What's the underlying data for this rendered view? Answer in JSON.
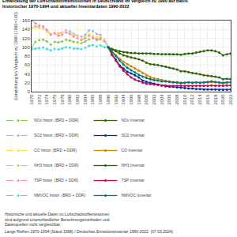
{
  "chart_data": {
    "type": "line",
    "title": "Entwicklung der Luftschadstoffemissionen in Deutschland im Vergleich zu 1990 auf Basis",
    "subtitle": "historischer 1970-1994 und aktueller Inventardaten 1990-2022",
    "y_label": "Entwicklung im Vergleich zu 1990 (1990=100)",
    "annotations": [
      "Historische und aktuelle Daten zu Luftschadstoffemissionen\nsind aufgrund unterschiedlicher Berechnungsmethoden und\nDatenquellen nicht vergleichbar.",
      "Lange Reihen 1970-1994 (Stand 1998) / Deutsches Emissionsinventar 1990-2022  (07.03.2024)"
    ],
    "x": [
      1970,
      1971,
      1972,
      1973,
      1974,
      1975,
      1976,
      1977,
      1978,
      1979,
      1980,
      1981,
      1982,
      1983,
      1984,
      1985,
      1986,
      1987,
      1988,
      1989,
      1990,
      1991,
      1992,
      1993,
      1994,
      1995,
      1996,
      1997,
      1998,
      1999,
      2000,
      2001,
      2002,
      2003,
      2004,
      2005,
      2006,
      2007,
      2008,
      2009,
      2010,
      2011,
      2012,
      2013,
      2014,
      2015,
      2016,
      2017,
      2018,
      2019,
      2020,
      2021,
      2022
    ],
    "xlim": [
      1970,
      2022
    ],
    "xticks": [
      1970,
      1972,
      1974,
      1976,
      1978,
      1980,
      1982,
      1984,
      1986,
      1988,
      1990,
      1992,
      1994,
      1996,
      1998,
      2000,
      2002,
      2004,
      2006,
      2008,
      2010,
      2012,
      2014,
      2016,
      2018,
      2020,
      2022
    ],
    "ylim": [
      0,
      160
    ],
    "yticks": [
      0,
      20,
      40,
      60,
      80,
      100,
      120,
      140,
      160
    ],
    "grid": true,
    "legend": "bottom",
    "marker": "point",
    "series": [
      {
        "name": "NOx histor. (BRD + DDR)",
        "color": "#88cc44",
        "line_style": "dashed",
        "values": [
          99,
          112,
          116,
          117,
          113,
          106,
          112,
          111,
          113,
          117,
          115,
          112,
          111,
          109,
          113,
          118,
          120,
          116,
          118,
          114,
          100,
          null,
          null,
          null,
          null,
          null,
          null,
          null,
          null,
          null,
          null,
          null,
          null,
          null,
          null,
          null,
          null,
          null,
          null,
          null,
          null,
          null,
          null,
          null,
          null,
          null,
          null,
          null,
          null,
          null,
          null,
          null,
          null
        ]
      },
      {
        "name": "NOx Inventar",
        "color": "#336600",
        "line_style": "solid",
        "values": [
          null,
          null,
          null,
          null,
          null,
          null,
          null,
          null,
          null,
          null,
          null,
          null,
          null,
          null,
          null,
          null,
          null,
          null,
          null,
          null,
          100,
          95,
          91,
          86,
          82,
          79,
          77,
          75,
          73,
          70,
          65,
          62,
          61,
          60,
          58,
          56,
          54,
          52,
          50,
          46,
          46,
          44,
          42,
          41,
          39,
          37,
          36,
          35,
          34,
          32,
          28,
          29,
          28
        ]
      },
      {
        "name": "SO2 histor. (BRD + DDR)",
        "color": "#88bbff",
        "line_style": "dashed",
        "values": [
          143,
          147,
          145,
          143,
          136,
          130,
          133,
          131,
          133,
          138,
          136,
          130,
          126,
          124,
          128,
          138,
          136,
          130,
          128,
          118,
          100,
          null,
          null,
          null,
          null,
          null,
          null,
          null,
          null,
          null,
          null,
          null,
          null,
          null,
          null,
          null,
          null,
          null,
          null,
          null,
          null,
          null,
          null,
          null,
          null,
          null,
          null,
          null,
          null,
          null,
          null,
          null,
          null
        ]
      },
      {
        "name": "SO2 Inventar",
        "color": "#003399",
        "line_style": "solid",
        "values": [
          null,
          null,
          null,
          null,
          null,
          null,
          null,
          null,
          null,
          null,
          null,
          null,
          null,
          null,
          null,
          null,
          null,
          null,
          null,
          null,
          100,
          83,
          72,
          59,
          52,
          45,
          41,
          37,
          32,
          25,
          22,
          20,
          18,
          16,
          14,
          12,
          11,
          11,
          10,
          9,
          8,
          7,
          7,
          6,
          6,
          5,
          5,
          5,
          5,
          4,
          4,
          4,
          5
        ]
      },
      {
        "name": "CO histor. (BRD + DDR)",
        "color": "#ffdd44",
        "line_style": "dashed",
        "values": [
          143,
          145,
          143,
          142,
          135,
          128,
          133,
          130,
          132,
          136,
          132,
          128,
          124,
          120,
          124,
          130,
          126,
          122,
          124,
          118,
          100,
          null,
          null,
          null,
          null,
          null,
          null,
          null,
          null,
          null,
          null,
          null,
          null,
          null,
          null,
          null,
          null,
          null,
          null,
          null,
          null,
          null,
          null,
          null,
          null,
          null,
          null,
          null,
          null,
          null,
          null,
          null,
          null
        ]
      },
      {
        "name": "CO Inventar",
        "color": "#cc8800",
        "line_style": "solid",
        "values": [
          null,
          null,
          null,
          null,
          null,
          null,
          null,
          null,
          null,
          null,
          null,
          null,
          null,
          null,
          null,
          null,
          null,
          null,
          null,
          null,
          100,
          90,
          82,
          74,
          67,
          62,
          57,
          52,
          47,
          42,
          37,
          33,
          30,
          28,
          26,
          24,
          23,
          22,
          21,
          20,
          20,
          21,
          20,
          21,
          20,
          21,
          21,
          22,
          21,
          20,
          19,
          20,
          21
        ]
      },
      {
        "name": "NH3 histor. (BRD + DDR)",
        "color": "#aad966",
        "line_style": "dashed",
        "values": [
          null,
          null,
          null,
          null,
          null,
          null,
          null,
          null,
          null,
          null,
          null,
          null,
          null,
          null,
          null,
          null,
          null,
          null,
          null,
          null,
          100,
          null,
          null,
          null,
          null,
          null,
          null,
          null,
          null,
          null,
          null,
          null,
          null,
          null,
          null,
          null,
          null,
          null,
          null,
          null,
          null,
          null,
          null,
          null,
          null,
          null,
          null,
          null,
          null,
          null,
          null,
          null,
          null
        ]
      },
      {
        "name": "NH3 Inventar",
        "color": "#226600",
        "line_style": "solid",
        "values": [
          null,
          null,
          null,
          null,
          null,
          null,
          null,
          null,
          null,
          null,
          null,
          null,
          null,
          null,
          null,
          null,
          null,
          null,
          null,
          null,
          100,
          96,
          93,
          91,
          89,
          88,
          87,
          87,
          86,
          86,
          86,
          86,
          85,
          85,
          84,
          84,
          84,
          84,
          84,
          83,
          85,
          86,
          86,
          88,
          90,
          91,
          93,
          93,
          91,
          88,
          82,
          84,
          86
        ]
      },
      {
        "name": "TSP histor. (BRD + DDR)",
        "color": "#ff88bb",
        "line_style": "dashed",
        "values": [
          160,
          154,
          149,
          147,
          139,
          128,
          131,
          126,
          128,
          133,
          130,
          124,
          120,
          116,
          120,
          126,
          122,
          118,
          120,
          114,
          100,
          null,
          null,
          null,
          null,
          null,
          null,
          null,
          null,
          null,
          null,
          null,
          null,
          null,
          null,
          null,
          null,
          null,
          null,
          null,
          null,
          null,
          null,
          null,
          null,
          null,
          null,
          null,
          null,
          null,
          null,
          null,
          null
        ]
      },
      {
        "name": "TSP Inventar",
        "color": "#cc0055",
        "line_style": "solid",
        "values": [
          null,
          null,
          null,
          null,
          null,
          null,
          null,
          null,
          null,
          null,
          null,
          null,
          null,
          null,
          null,
          null,
          null,
          null,
          null,
          null,
          100,
          83,
          70,
          57,
          47,
          39,
          32,
          27,
          24,
          20,
          18,
          17,
          16,
          15,
          14,
          14,
          13,
          13,
          13,
          13,
          13,
          13,
          13,
          13,
          13,
          13,
          13,
          14,
          13,
          13,
          13,
          14,
          14
        ]
      },
      {
        "name": "NMVOC histor. (BRD + DDR)",
        "color": "#44dddd",
        "line_style": "dashed",
        "values": [
          95,
          97,
          98,
          99,
          96,
          93,
          96,
          95,
          97,
          100,
          99,
          97,
          97,
          96,
          99,
          103,
          105,
          102,
          104,
          100,
          100,
          null,
          null,
          null,
          null,
          null,
          null,
          null,
          null,
          null,
          null,
          null,
          null,
          null,
          null,
          null,
          null,
          null,
          null,
          null,
          null,
          null,
          null,
          null,
          null,
          null,
          null,
          null,
          null,
          null,
          null,
          null,
          null
        ]
      },
      {
        "name": "NMVOC Inventar",
        "color": "#007777",
        "line_style": "solid",
        "values": [
          null,
          null,
          null,
          null,
          null,
          null,
          null,
          null,
          null,
          null,
          null,
          null,
          null,
          null,
          null,
          null,
          null,
          null,
          null,
          null,
          100,
          89,
          80,
          70,
          61,
          54,
          48,
          43,
          38,
          34,
          31,
          28,
          26,
          25,
          23,
          23,
          22,
          21,
          21,
          19,
          20,
          21,
          20,
          21,
          20,
          21,
          22,
          23,
          22,
          21,
          20,
          21,
          21
        ]
      }
    ]
  }
}
